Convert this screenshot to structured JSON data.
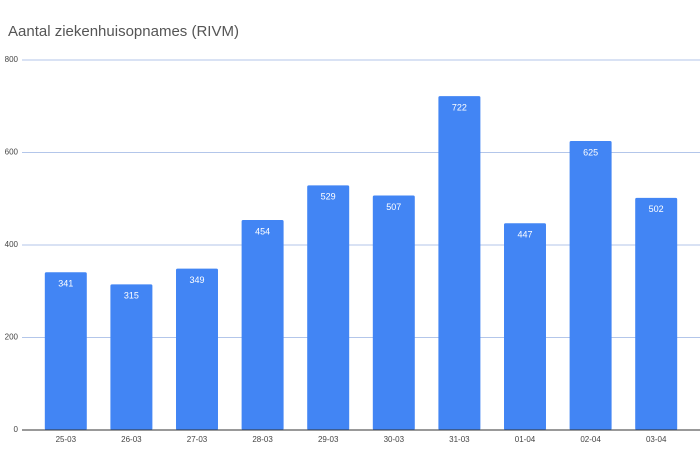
{
  "chart_data": {
    "type": "bar",
    "title": "Aantal ziekenhuisopnames (RIVM)",
    "categories": [
      "25-03",
      "26-03",
      "27-03",
      "28-03",
      "29-03",
      "30-03",
      "31-03",
      "01-04",
      "02-04",
      "03-04"
    ],
    "values": [
      341,
      315,
      349,
      454,
      529,
      507,
      722,
      447,
      625,
      502
    ],
    "color": "#4285f4",
    "ylim": [
      0,
      800
    ],
    "yticks": [
      0,
      200,
      400,
      600,
      800
    ],
    "grid": true
  }
}
